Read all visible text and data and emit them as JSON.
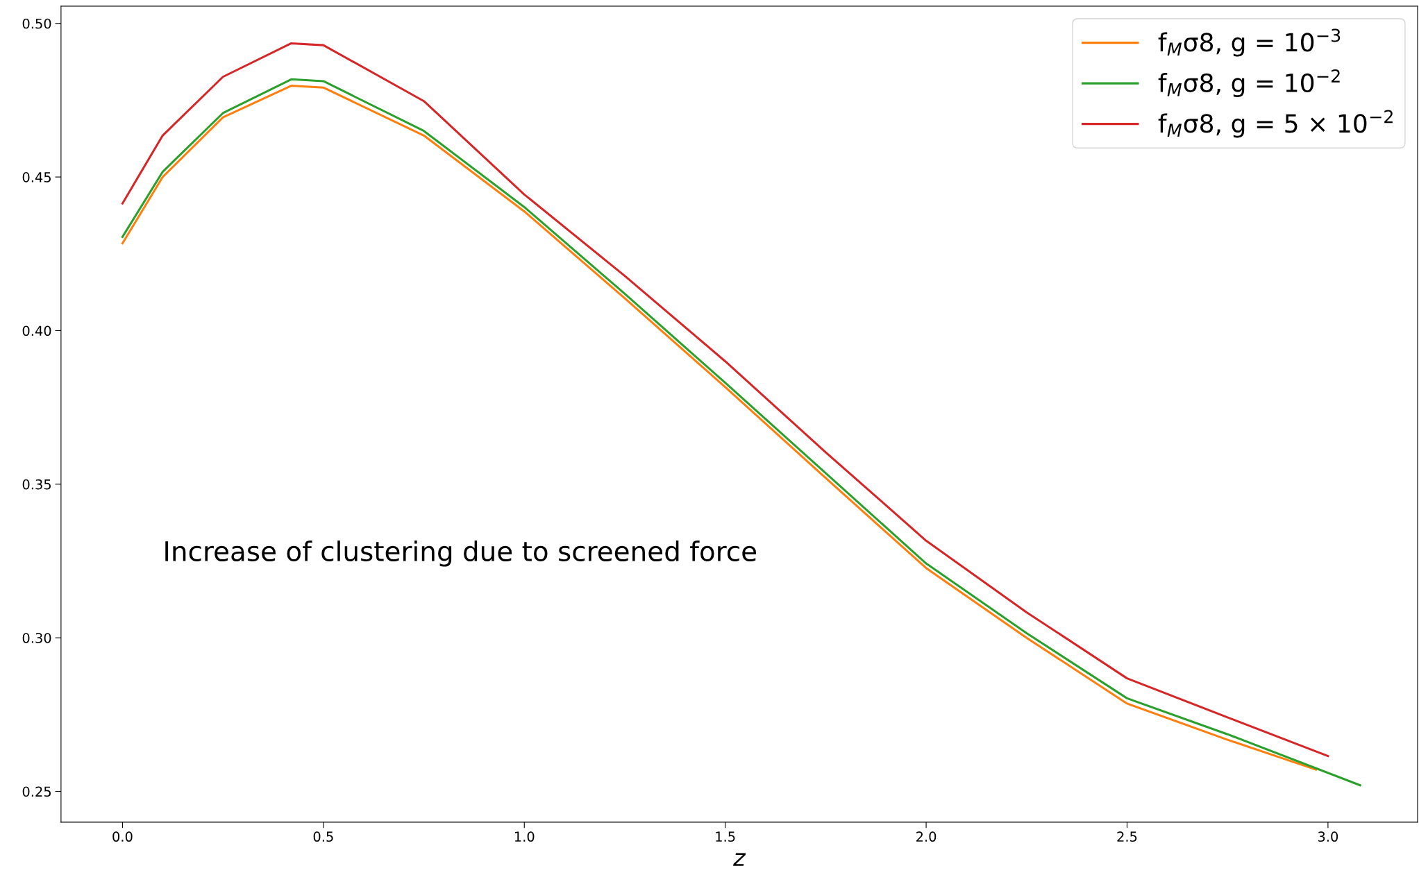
{
  "chart_data": {
    "type": "line",
    "xlabel": "z",
    "xlim": [
      -0.153,
      3.223
    ],
    "ylim": [
      0.24,
      0.5056
    ],
    "xticks": [
      {
        "value": 0,
        "label": "0.0"
      },
      0.5,
      {
        "value": 1,
        "label": "1.0"
      },
      1.5,
      {
        "value": 2,
        "label": "2.0"
      },
      2.5,
      {
        "value": 3,
        "label": "3.0"
      }
    ],
    "yticks": [
      {
        "value": 0.25,
        "label": "0.25"
      },
      {
        "value": 0.3,
        "label": "0.30"
      },
      0.35,
      {
        "value": 0.4,
        "label": "0.40"
      },
      0.45,
      {
        "value": 0.5,
        "label": "0.50"
      }
    ],
    "grid": false,
    "legend": "top right",
    "line_style": "solid",
    "marker": "none",
    "annotations": [
      "Increase of clustering due to screened force"
    ],
    "series": [
      {
        "name": "f$_{M}$σ8, g = 10$^{−3}$",
        "color": "#ff7f0e",
        "x": [
          0,
          0.1,
          0.25,
          0.42,
          0.5,
          0.75,
          1.0,
          1.25,
          1.5,
          1.75,
          2.0,
          2.25,
          2.5,
          2.75,
          2.97
        ],
        "values": [
          0.4284,
          0.45,
          0.4694,
          0.4797,
          0.4791,
          0.4635,
          0.4388,
          0.4105,
          0.3816,
          0.352,
          0.3227,
          0.3,
          0.2786,
          0.2668,
          0.2571
        ]
      },
      {
        "name": "f$_{M}$σ8, g = 10$^{−2}$",
        "color": "#2ca02c",
        "x": [
          0,
          0.1,
          0.25,
          0.42,
          0.5,
          0.75,
          1.0,
          1.25,
          1.5,
          1.75,
          2.0,
          2.25,
          2.5,
          2.75,
          3.08
        ],
        "values": [
          0.4305,
          0.4517,
          0.4708,
          0.4818,
          0.4812,
          0.465,
          0.4402,
          0.412,
          0.383,
          0.3536,
          0.3242,
          0.3015,
          0.2803,
          0.2686,
          0.252
        ]
      },
      {
        "name": "f$_{M}$σ8, g = 5 × 10$^{−2}$",
        "color": "#d62728",
        "x": [
          0,
          0.1,
          0.25,
          0.42,
          0.5,
          0.75,
          1.0,
          1.25,
          1.5,
          1.75,
          2.0,
          2.25,
          2.5,
          2.75,
          3.0
        ],
        "values": [
          0.4414,
          0.4635,
          0.4826,
          0.4935,
          0.4929,
          0.4747,
          0.4443,
          0.4178,
          0.39,
          0.3604,
          0.3316,
          0.3083,
          0.2868,
          0.2741,
          0.2615
        ]
      }
    ]
  }
}
